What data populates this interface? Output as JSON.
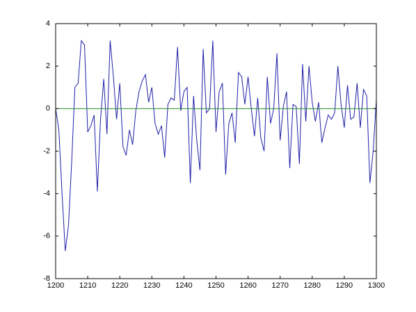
{
  "chart_data": {
    "type": "line",
    "xlim": [
      1200,
      1300
    ],
    "xticks": [
      1200,
      1210,
      1220,
      1230,
      1240,
      1250,
      1260,
      1270,
      1280,
      1290,
      1300
    ],
    "ylim": [
      -8,
      4
    ],
    "yticks": [
      -8,
      -6,
      -4,
      -2,
      0,
      2,
      4
    ],
    "series": [
      {
        "color": "#1f1fa8",
        "x": [
          1200,
          1201,
          1202,
          1203,
          1204,
          1205,
          1206,
          1207,
          1208,
          1209,
          1210,
          1211,
          1212,
          1213,
          1214,
          1215,
          1216,
          1217,
          1218,
          1219,
          1220,
          1221,
          1222,
          1223,
          1224,
          1225,
          1226,
          1227,
          1228,
          1229,
          1230,
          1231,
          1232,
          1233,
          1234,
          1235,
          1236,
          1237,
          1238,
          1239,
          1240,
          1241,
          1242,
          1243,
          1244,
          1245,
          1246,
          1247,
          1248,
          1249,
          1250,
          1251,
          1252,
          1253,
          1254,
          1255,
          1256,
          1257,
          1258,
          1259,
          1260,
          1261,
          1262,
          1263,
          1264,
          1265,
          1266,
          1267,
          1268,
          1269,
          1270,
          1271,
          1272,
          1273,
          1274,
          1275,
          1276,
          1277,
          1278,
          1279,
          1280,
          1281,
          1282,
          1283,
          1284,
          1285,
          1286,
          1287,
          1288,
          1289,
          1290,
          1291,
          1292,
          1293,
          1294,
          1295,
          1296,
          1297,
          1298,
          1299,
          1300
        ],
        "values": [
          0,
          -1,
          -4,
          -6.7,
          -5.5,
          -2.5,
          1.0,
          1.2,
          3.2,
          3.0,
          -1.1,
          -0.8,
          -0.3,
          -3.9,
          -0.5,
          1.4,
          -1.2,
          3.2,
          1.5,
          -0.5,
          1.2,
          -1.8,
          -2.2,
          -1.0,
          -1.7,
          -0.1,
          0.8,
          1.3,
          1.6,
          0.3,
          1.0,
          -0.7,
          -1.2,
          -0.8,
          -2.3,
          0.2,
          0.5,
          0.4,
          2.9,
          -0.1,
          0.8,
          1.0,
          -3.5,
          0.6,
          -1.5,
          -2.9,
          2.8,
          -0.2,
          0.0,
          3.2,
          -1.1,
          0.8,
          1.2,
          -3.1,
          -0.7,
          -0.2,
          -1.6,
          1.7,
          1.5,
          0.2,
          1.5,
          0.0,
          -1.3,
          0.5,
          -1.4,
          -2.0,
          1.5,
          -0.7,
          0.0,
          2.6,
          -1.5,
          0.1,
          0.8,
          -2.8,
          0.2,
          0.1,
          -2.6,
          2.1,
          -0.6,
          2.0,
          0.3,
          -0.6,
          0.3,
          -1.6,
          -0.9,
          -0.3,
          -0.5,
          -0.2,
          2.0,
          0.2,
          -0.9,
          1.1,
          -0.5,
          -0.4,
          1.2,
          -0.9,
          0.9,
          0.6,
          -3.5,
          -2.0,
          0.4
        ]
      },
      {
        "color": "#2e8b2e",
        "x": [
          1200,
          1300
        ],
        "values": [
          0,
          0
        ]
      }
    ]
  }
}
